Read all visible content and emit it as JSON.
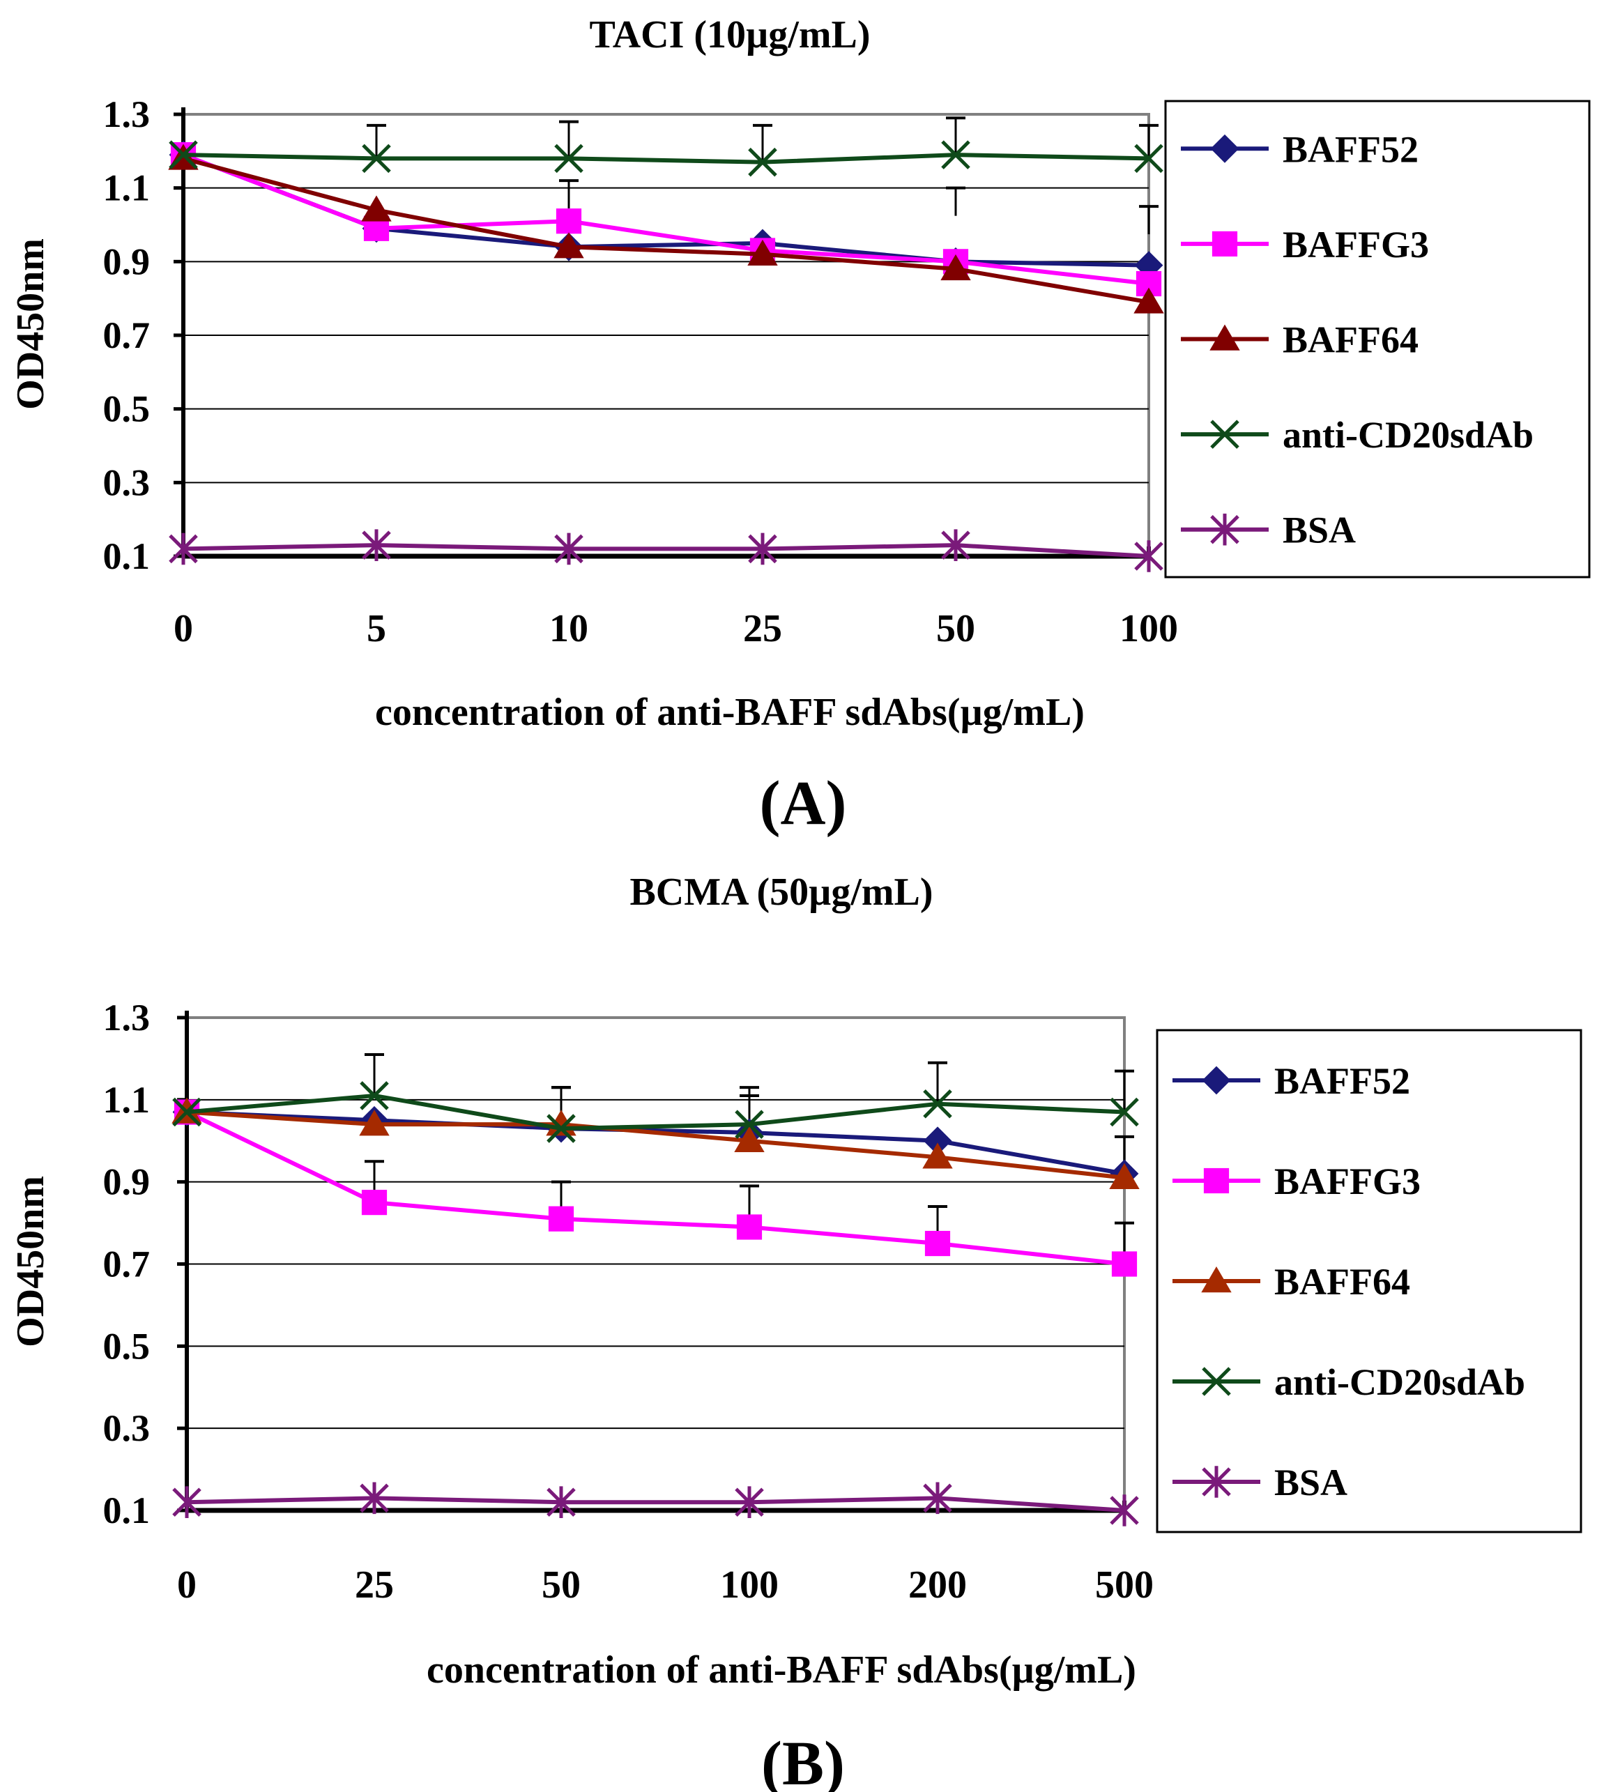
{
  "chart_data": [
    {
      "type": "line",
      "title": "TACI (10µg/mL)",
      "xlabel": "concentration of anti-BAFF sdAbs(µg/mL)",
      "ylabel": "OD450nm",
      "panel_label": "(A)",
      "categories": [
        "0",
        "5",
        "10",
        "25",
        "50",
        "100"
      ],
      "ylim": [
        0.1,
        1.3
      ],
      "yticks": [
        "0.1",
        "0.3",
        "0.5",
        "0.7",
        "0.9",
        "1.1",
        "1.3"
      ],
      "grid": true,
      "legend_position": "right",
      "series": [
        {
          "name": "BAFF52",
          "marker": "diamond",
          "color": "#1a1a7a",
          "values": [
            1.19,
            0.99,
            0.94,
            0.95,
            0.9,
            0.89
          ],
          "errors": [
            0,
            0,
            0,
            0,
            0,
            0
          ]
        },
        {
          "name": "BAFFG3",
          "marker": "square",
          "color": "#ff00ff",
          "values": [
            1.19,
            0.99,
            1.01,
            0.93,
            0.9,
            0.84
          ],
          "errors": [
            0,
            0,
            0,
            0,
            0,
            0
          ]
        },
        {
          "name": "BAFF64",
          "marker": "triangle",
          "color": "#800000",
          "values": [
            1.18,
            1.04,
            0.94,
            0.92,
            0.88,
            0.79
          ],
          "errors": [
            0,
            0,
            0,
            0,
            0,
            0
          ]
        },
        {
          "name": "anti-CD20sdAb",
          "marker": "x",
          "color": "#0f4a1a",
          "values": [
            1.19,
            1.18,
            1.18,
            1.17,
            1.19,
            1.18
          ],
          "errors": [
            0,
            0.09,
            0.1,
            0.1,
            0.1,
            0.09
          ]
        },
        {
          "name": "BSA",
          "marker": "star",
          "color": "#7a1a7a",
          "values": [
            0.12,
            0.13,
            0.12,
            0.12,
            0.13,
            0.1
          ],
          "errors": [
            0,
            0,
            0,
            0,
            0,
            0
          ]
        }
      ],
      "extra_error_caps": [
        [
          2,
          1.12
        ],
        [
          4,
          1.1
        ],
        [
          5,
          1.05
        ]
      ]
    },
    {
      "type": "line",
      "title": "BCMA (50µg/mL)",
      "xlabel": "concentration of anti-BAFF sdAbs(µg/mL)",
      "ylabel": "OD450nm",
      "panel_label": "(B)",
      "categories": [
        "0",
        "25",
        "50",
        "100",
        "200",
        "500"
      ],
      "ylim": [
        0.1,
        1.3
      ],
      "yticks": [
        "0.1",
        "0.3",
        "0.5",
        "0.7",
        "0.9",
        "1.1",
        "1.3"
      ],
      "grid": true,
      "legend_position": "right",
      "series": [
        {
          "name": "BAFF52",
          "marker": "diamond",
          "color": "#1a1a7a",
          "values": [
            1.07,
            1.05,
            1.03,
            1.02,
            1.0,
            0.92
          ],
          "errors": [
            0,
            0,
            0.1,
            0.09,
            0,
            0
          ]
        },
        {
          "name": "BAFFG3",
          "marker": "square",
          "color": "#ff00ff",
          "values": [
            1.07,
            0.85,
            0.81,
            0.79,
            0.75,
            0.7
          ],
          "errors": [
            0,
            0.1,
            0.09,
            0.1,
            0.09,
            0.1
          ]
        },
        {
          "name": "BAFF64",
          "marker": "triangle",
          "color": "#a52a00",
          "values": [
            1.07,
            1.04,
            1.04,
            1.0,
            0.96,
            0.91
          ],
          "errors": [
            0,
            0,
            0.09,
            0.11,
            0,
            0.1
          ]
        },
        {
          "name": "anti-CD20sdAb",
          "marker": "x",
          "color": "#0f4a1a",
          "values": [
            1.07,
            1.11,
            1.03,
            1.04,
            1.09,
            1.07
          ],
          "errors": [
            0,
            0.1,
            0.1,
            0.09,
            0.1,
            0.1
          ]
        },
        {
          "name": "BSA",
          "marker": "star",
          "color": "#7a1a7a",
          "values": [
            0.12,
            0.13,
            0.12,
            0.12,
            0.13,
            0.1
          ],
          "errors": [
            0,
            0,
            0,
            0,
            0,
            0
          ]
        }
      ],
      "extra_error_caps": []
    }
  ]
}
